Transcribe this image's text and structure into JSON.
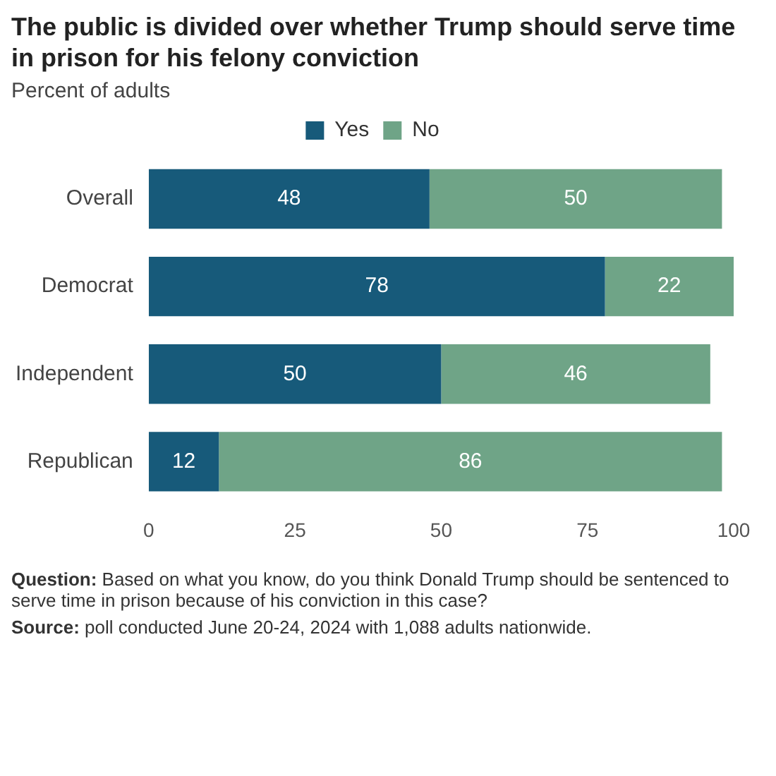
{
  "chart_data": {
    "type": "bar",
    "orientation": "horizontal",
    "stacked": true,
    "title": "The public is divided over whether Trump should serve time in prison for his felony conviction",
    "subtitle": "Percent of adults",
    "categories": [
      "Overall",
      "Democrat",
      "Independent",
      "Republican"
    ],
    "series": [
      {
        "name": "Yes",
        "color": "#175a7a",
        "values": [
          48,
          78,
          50,
          12
        ]
      },
      {
        "name": "No",
        "color": "#6fa487",
        "values": [
          50,
          22,
          46,
          86
        ]
      }
    ],
    "xlim": [
      0,
      100
    ],
    "xticks": [
      0,
      25,
      50,
      75,
      100
    ],
    "grid": false,
    "legend": "top",
    "data_labels": true,
    "annotations": [
      "Question: Based on what you know, do you think Donald Trump should be sentenced to serve time in prison because of his conviction in this case?",
      "Source: poll conducted June 20-24, 2024 with 1,088 adults nationwide."
    ]
  }
}
